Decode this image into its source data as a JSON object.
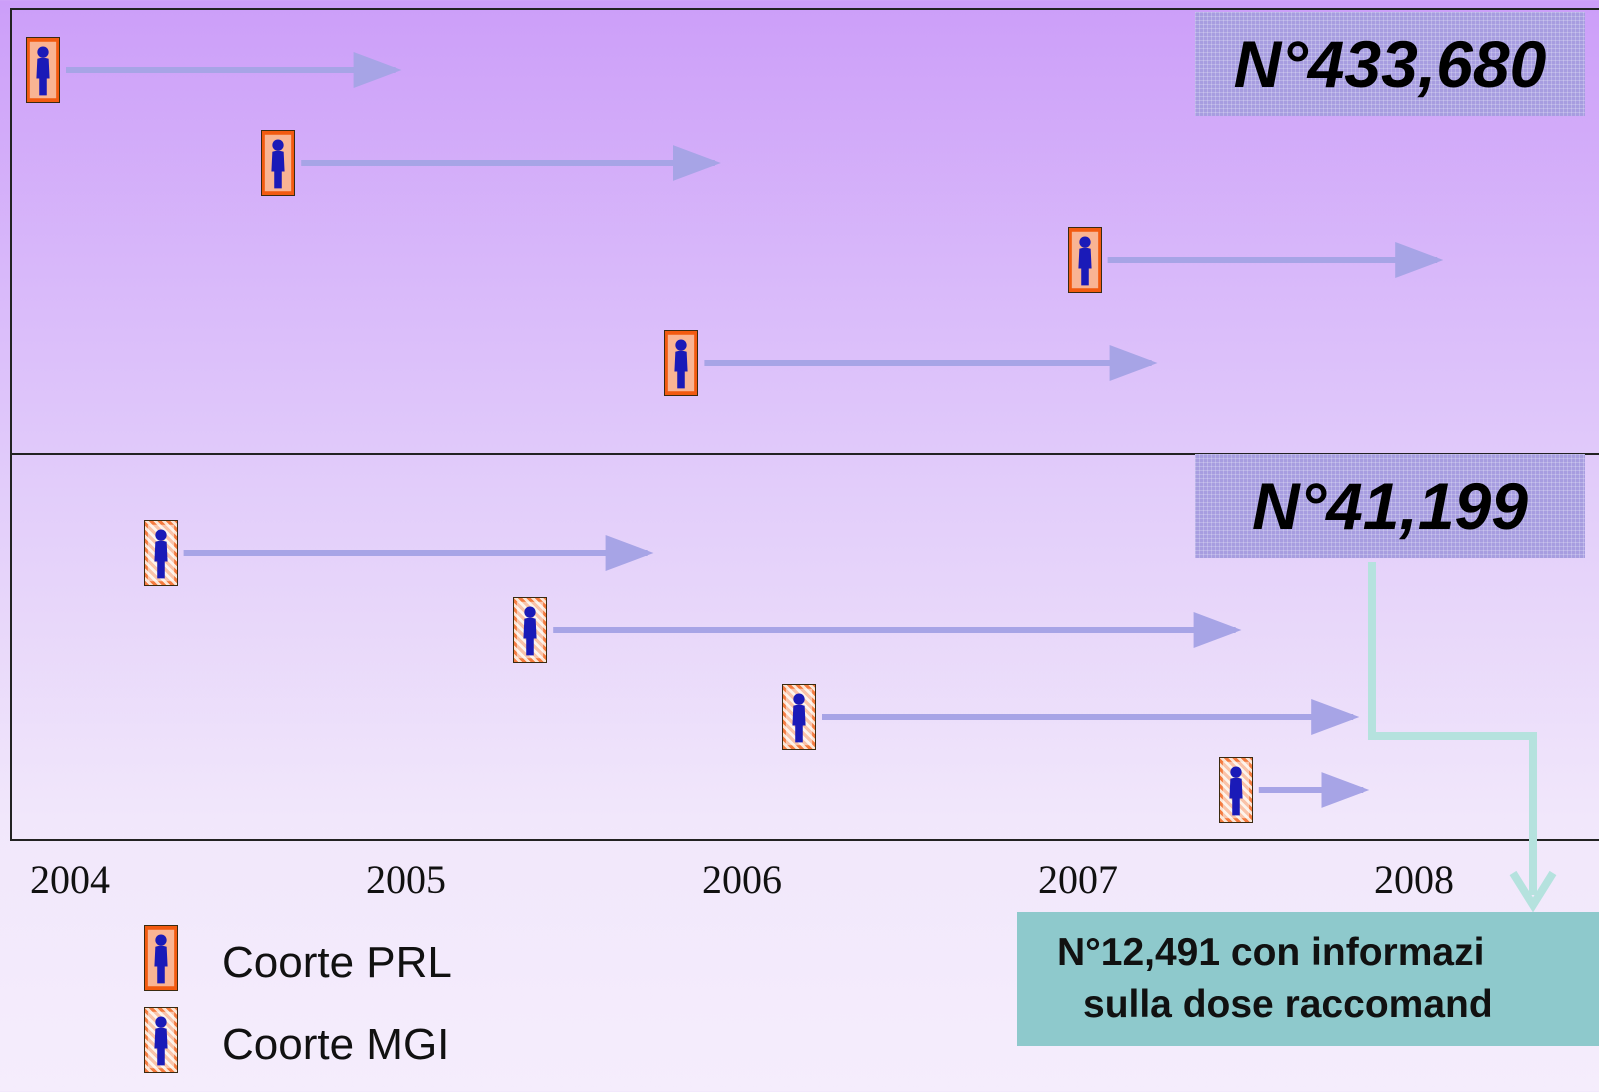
{
  "counts": {
    "prl": "N°433,680",
    "mgi": "N°41,199"
  },
  "years": [
    "2004",
    "2005",
    "2006",
    "2007",
    "2008"
  ],
  "legend": {
    "prl_label": "Coorte PRL",
    "mgi_label": "Coorte MGI"
  },
  "result": {
    "line1": "N°12,491 con informazi",
    "line2": "sulla dose raccomand"
  },
  "colors": {
    "arrow": "#a7a4e6",
    "connector": "#b5e2de",
    "prl_fill": "#f25a10",
    "figure": "#1a1ab8"
  },
  "icons": [
    "person-icon",
    "arrow-right-icon"
  ],
  "chart_data": {
    "type": "timeline",
    "x_axis_ticks": [
      "2004",
      "2005",
      "2006",
      "2007",
      "2008"
    ],
    "series": [
      {
        "name": "Coorte PRL",
        "count": "N°433,680",
        "tracks": [
          [
            2004.0,
            2005.1
          ],
          [
            2004.7,
            2006.05
          ],
          [
            2007.1,
            2008.2
          ],
          [
            2005.9,
            2007.35
          ]
        ]
      },
      {
        "name": "Coorte MGI",
        "count": "N°41,199",
        "tracks": [
          [
            2004.35,
            2005.85
          ],
          [
            2005.45,
            2007.6
          ],
          [
            2006.25,
            2007.95
          ],
          [
            2007.55,
            2007.98
          ]
        ]
      }
    ]
  }
}
